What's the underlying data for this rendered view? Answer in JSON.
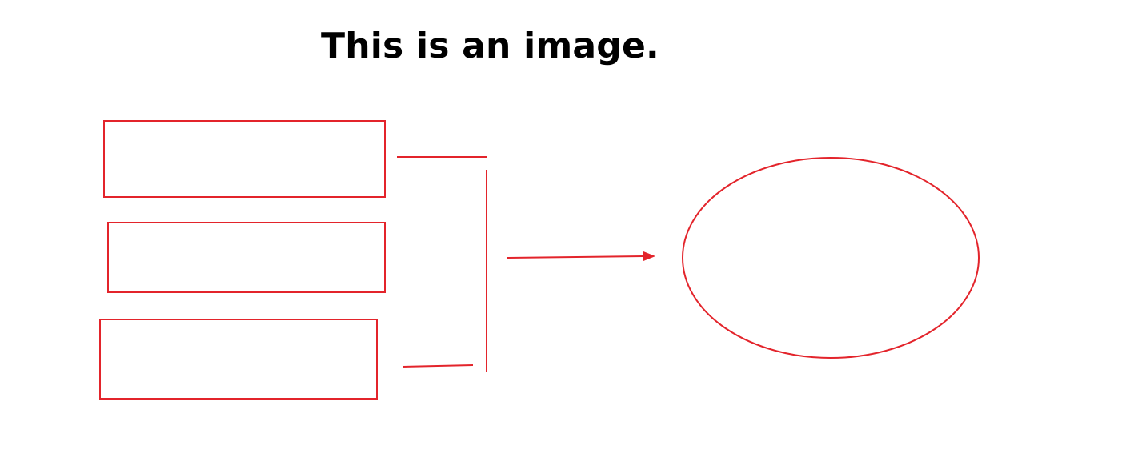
{
  "title": "This is an image.",
  "colors": {
    "stroke": "#e3242b",
    "background": "#ffffff",
    "title": "#000000"
  },
  "diagram": {
    "boxes": [
      {
        "id": "box-1",
        "label": ""
      },
      {
        "id": "box-2",
        "label": ""
      },
      {
        "id": "box-3",
        "label": ""
      }
    ],
    "ellipse": {
      "label": ""
    },
    "arrow": {
      "direction": "right"
    }
  }
}
